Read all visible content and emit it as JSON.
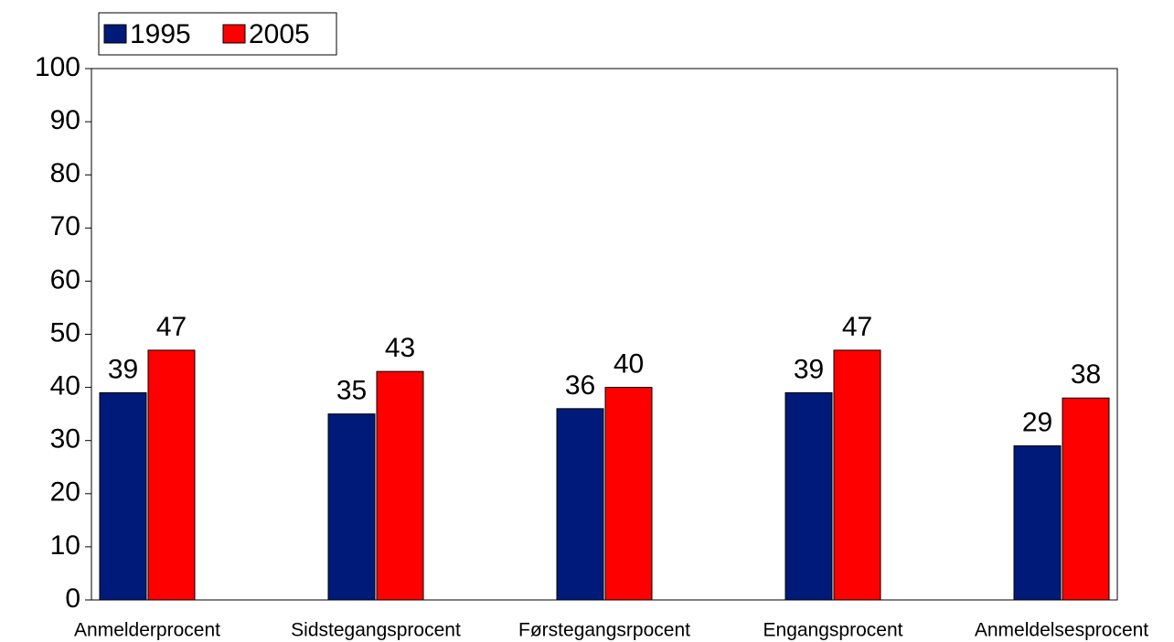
{
  "chart_data": {
    "type": "bar",
    "categories": [
      "Anmelderprocent",
      "Sidstegangsprocent",
      "Førstegangsrpocent",
      "Engangsprocent",
      "Anmeldelsesprocent"
    ],
    "series": [
      {
        "name": "1995",
        "color": "#001a7a",
        "values": [
          39,
          35,
          36,
          39,
          29
        ]
      },
      {
        "name": "2005",
        "color": "#ff0000",
        "values": [
          47,
          43,
          40,
          47,
          38
        ]
      }
    ],
    "ylim": [
      0,
      100
    ],
    "yticks": [
      0,
      10,
      20,
      30,
      40,
      50,
      60,
      70,
      80,
      90,
      100
    ],
    "legend": "top-left"
  }
}
